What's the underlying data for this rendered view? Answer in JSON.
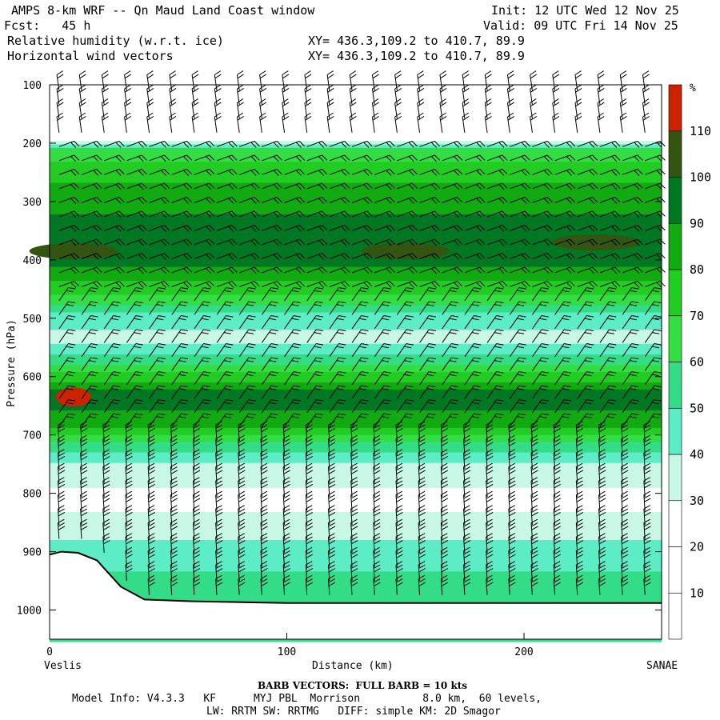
{
  "header": {
    "title": "AMPS 8-km WRF -- Qn Maud Land Coast window",
    "fcst": "Fcst:   45 h",
    "init": "Init: 12 UTC Wed 12 Nov 25",
    "valid": "Valid: 09 UTC Fri 14 Nov 25",
    "field1": "Relative humidity (w.r.t. ice)",
    "field2": "Horizontal wind vectors",
    "xy1": "XY= 436.3,109.2 to 410.7, 89.9",
    "xy2": "XY= 436.3,109.2 to 410.7, 89.9"
  },
  "footer": {
    "barb": "BARB VECTORS:  FULL BARB = 10 kts",
    "model1": "Model Info: V4.3.3   KF      MYJ PBL  Morrison          8.0 km,  60 levels,",
    "model2": "LW: RRTM SW: RRTMG   DIFF: simple KM: 2D Smagor"
  },
  "colors": {
    "rh_white": "#ffffff",
    "rh_30_40": "#c8f7e6",
    "rh_40_50": "#5cedc6",
    "rh_50_60": "#33dd88",
    "rh_60_70": "#33dd44",
    "rh_70_80": "#22cc22",
    "rh_80_90": "#11aa11",
    "rh_90_100": "#007722",
    "rh_100_110": "#335511",
    "rh_110_plus": "#cc2200"
  },
  "chart_data": {
    "type": "heatmap",
    "title": "Relative humidity (w.r.t. ice)",
    "xlabel": "Distance (km)",
    "ylabel": "Pressure (hPa)",
    "xlim": [
      0,
      258
    ],
    "ylim": [
      1050,
      100
    ],
    "x_ticks": [
      0,
      100,
      200
    ],
    "y_ticks": [
      100,
      200,
      300,
      400,
      500,
      600,
      700,
      800,
      900,
      1000
    ],
    "x_start_label": "Veslis",
    "x_end_label": "SANAE",
    "colorbar_unit": "%",
    "colorbar_levels": [
      10,
      20,
      30,
      40,
      50,
      60,
      70,
      80,
      90,
      100,
      110
    ],
    "terrain_pressure": [
      {
        "x": 0,
        "p": 905
      },
      {
        "x": 5,
        "p": 900
      },
      {
        "x": 12,
        "p": 902
      },
      {
        "x": 20,
        "p": 915
      },
      {
        "x": 30,
        "p": 960
      },
      {
        "x": 40,
        "p": 982
      },
      {
        "x": 60,
        "p": 985
      },
      {
        "x": 100,
        "p": 988
      },
      {
        "x": 160,
        "p": 988
      },
      {
        "x": 258,
        "p": 988
      }
    ],
    "rh_profile_by_pressure": [
      {
        "p": 100,
        "rh": 5
      },
      {
        "p": 190,
        "rh": 5
      },
      {
        "p": 210,
        "rh": 62
      },
      {
        "p": 260,
        "rh": 78
      },
      {
        "p": 300,
        "rh": 86
      },
      {
        "p": 350,
        "rh": 94
      },
      {
        "p": 390,
        "rh": 98
      },
      {
        "p": 420,
        "rh": 88
      },
      {
        "p": 460,
        "rh": 70
      },
      {
        "p": 500,
        "rh": 45
      },
      {
        "p": 540,
        "rh": 36
      },
      {
        "p": 580,
        "rh": 60
      },
      {
        "p": 630,
        "rh": 96
      },
      {
        "p": 680,
        "rh": 85
      },
      {
        "p": 720,
        "rh": 55
      },
      {
        "p": 760,
        "rh": 32
      },
      {
        "p": 820,
        "rh": 28
      },
      {
        "p": 880,
        "rh": 40
      },
      {
        "p": 960,
        "rh": 55
      },
      {
        "p": 1050,
        "rh": 55
      }
    ],
    "rh_anomalies": [
      {
        "x": 10,
        "p": 635,
        "rh": 112
      },
      {
        "x": 10,
        "p": 385,
        "rh": 103
      },
      {
        "x": 150,
        "p": 385,
        "rh": 101
      },
      {
        "x": 230,
        "p": 370,
        "rh": 102
      }
    ],
    "wind_barbs": "full barb = 10 kts; mixed directions shown in cross-section"
  }
}
